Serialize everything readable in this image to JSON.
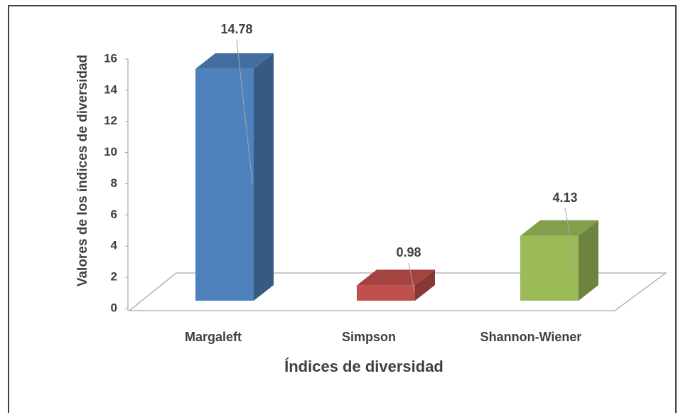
{
  "chart_data": {
    "type": "bar3d",
    "x_label": "Índices de diversidad",
    "y_label": "Valores de los índices de diversidad",
    "categories": [
      "Margaleft",
      "Simpson",
      "Shannon-Wiener"
    ],
    "values": [
      14.78,
      0.98,
      4.13
    ],
    "colors": [
      "#4f81bd",
      "#c0504d",
      "#9bbb59"
    ],
    "ylim": [
      0,
      16
    ],
    "yticks": [
      0,
      2,
      4,
      6,
      8,
      10,
      12,
      14,
      16
    ]
  }
}
